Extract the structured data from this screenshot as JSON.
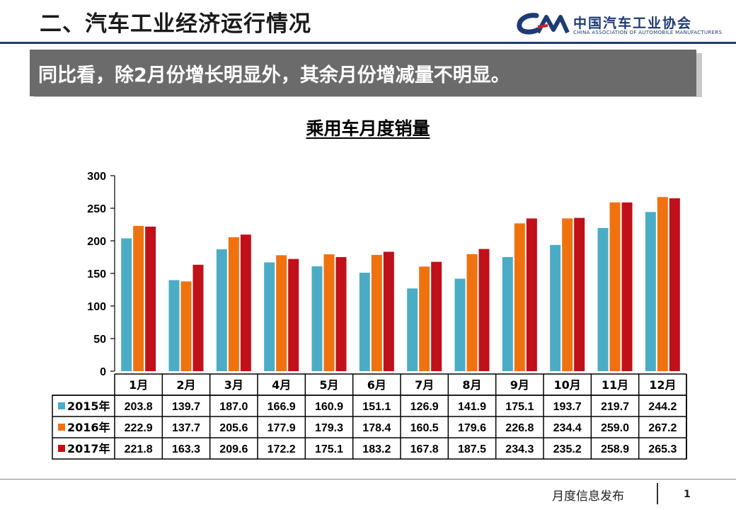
{
  "header": {
    "title": "二、汽车工业经济运行情况",
    "logo_cn": "中国汽车工业协会",
    "logo_en": "CHINA ASSOCIATION OF AUTOMOBILE MANUFACTURERS"
  },
  "banner": {
    "text": "同比看，除2月份增长明显外，其余月份增减量不明显。"
  },
  "footer": {
    "text": "月度信息发布",
    "page": "1"
  },
  "colors": {
    "s2015": "#4bacc6",
    "s2016": "#f0720f",
    "s2017": "#c0101a",
    "header_rule": "#1f3b73",
    "banner_bg": "#6b6b6b"
  },
  "chart_data": {
    "type": "bar",
    "title": "乘用车月度销量",
    "categories": [
      "1月",
      "2月",
      "3月",
      "4月",
      "5月",
      "6月",
      "7月",
      "8月",
      "9月",
      "10月",
      "11月",
      "12月"
    ],
    "ylim": [
      0,
      300
    ],
    "yticks": [
      "0",
      "50",
      "100",
      "150",
      "200",
      "250",
      "300"
    ],
    "grid": false,
    "legend": "data-table",
    "series": [
      {
        "name": "2015年",
        "color": "#4bacc6",
        "values": [
          203.8,
          139.7,
          187.0,
          166.9,
          160.9,
          151.1,
          126.9,
          141.9,
          175.1,
          193.7,
          219.7,
          244.2
        ],
        "labels": [
          "203.8",
          "139.7",
          "187.0",
          "166.9",
          "160.9",
          "151.1",
          "126.9",
          "141.9",
          "175.1",
          "193.7",
          "219.7",
          "244.2"
        ]
      },
      {
        "name": "2016年",
        "color": "#f0720f",
        "values": [
          222.9,
          137.7,
          205.6,
          177.9,
          179.3,
          178.4,
          160.5,
          179.6,
          226.8,
          234.4,
          259.0,
          267.2
        ],
        "labels": [
          "222.9",
          "137.7",
          "205.6",
          "177.9",
          "179.3",
          "178.4",
          "160.5",
          "179.6",
          "226.8",
          "234.4",
          "259.0",
          "267.2"
        ]
      },
      {
        "name": "2017年",
        "color": "#c0101a",
        "values": [
          221.8,
          163.3,
          209.6,
          172.2,
          175.1,
          183.2,
          167.8,
          187.5,
          234.3,
          235.2,
          258.9,
          265.3
        ],
        "labels": [
          "221.8",
          "163.3",
          "209.6",
          "172.2",
          "175.1",
          "183.2",
          "167.8",
          "187.5",
          "234.3",
          "235.2",
          "258.9",
          "265.3"
        ]
      }
    ]
  }
}
